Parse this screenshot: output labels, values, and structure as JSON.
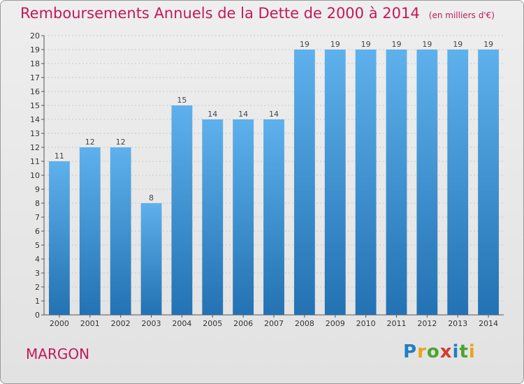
{
  "header": {
    "title": "Remboursements Annuels de la Dette de 2000 à 2014",
    "unit": "(en milliers d'€)"
  },
  "commune": "MARGON",
  "brand": {
    "letters": [
      "P",
      "r",
      "o",
      "x",
      "i",
      "t",
      "i"
    ],
    "colors": [
      "#1f7fc4",
      "#e8a51a",
      "#4aa42e",
      "#d63a2c",
      "#1f7fc4",
      "#4aa42e",
      "#e8a51a"
    ]
  },
  "chart_data": {
    "type": "bar",
    "title": "Remboursements Annuels de la Dette de 2000 à 2014",
    "subtitle": "(en milliers d'€)",
    "xlabel": "",
    "ylabel": "",
    "categories": [
      "2000",
      "2001",
      "2002",
      "2003",
      "2004",
      "2005",
      "2006",
      "2007",
      "2008",
      "2009",
      "2010",
      "2011",
      "2012",
      "2013",
      "2014"
    ],
    "values": [
      11,
      12,
      12,
      8,
      15,
      14,
      14,
      14,
      19,
      19,
      19,
      19,
      19,
      19,
      19
    ],
    "ylim": [
      0,
      20
    ],
    "yticks": [
      0,
      1,
      2,
      3,
      4,
      5,
      6,
      7,
      8,
      9,
      10,
      11,
      12,
      13,
      14,
      15,
      16,
      17,
      18,
      19,
      20
    ],
    "grid": true,
    "bar_color": "#3d97d9"
  }
}
